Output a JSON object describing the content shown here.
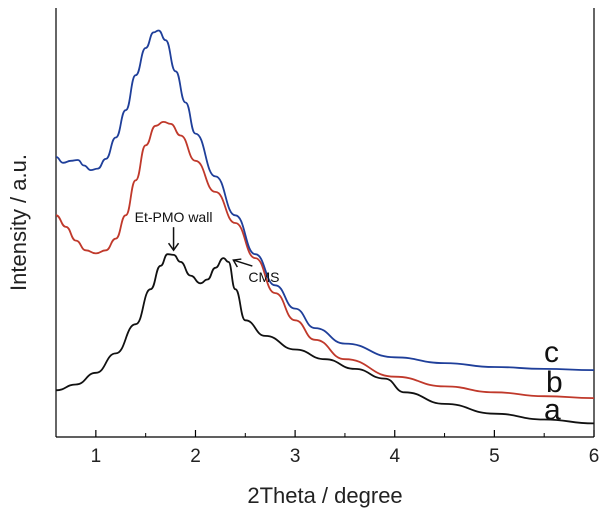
{
  "chart_data": {
    "type": "line",
    "title": "",
    "xlabel": "2Theta / degree",
    "ylabel": "Intensity / a.u.",
    "xlim": [
      0.6,
      6
    ],
    "ylim": [
      0,
      1
    ],
    "x_ticks": [
      1,
      2,
      3,
      4,
      5,
      6
    ],
    "y_ticks": [],
    "grid": false,
    "series": [
      {
        "label": "a",
        "color": "#111111",
        "points": [
          [
            0.6,
            0.12
          ],
          [
            0.8,
            0.135
          ],
          [
            1.0,
            0.165
          ],
          [
            1.2,
            0.215
          ],
          [
            1.4,
            0.29
          ],
          [
            1.55,
            0.38
          ],
          [
            1.65,
            0.44
          ],
          [
            1.72,
            0.47
          ],
          [
            1.78,
            0.468
          ],
          [
            1.85,
            0.45
          ],
          [
            1.95,
            0.415
          ],
          [
            2.05,
            0.395
          ],
          [
            2.12,
            0.405
          ],
          [
            2.2,
            0.435
          ],
          [
            2.28,
            0.46
          ],
          [
            2.33,
            0.45
          ],
          [
            2.4,
            0.38
          ],
          [
            2.5,
            0.3
          ],
          [
            2.7,
            0.26
          ],
          [
            3.0,
            0.225
          ],
          [
            3.3,
            0.2
          ],
          [
            3.6,
            0.175
          ],
          [
            3.9,
            0.15
          ],
          [
            4.1,
            0.115
          ],
          [
            4.5,
            0.085
          ],
          [
            5.0,
            0.06
          ],
          [
            5.5,
            0.045
          ],
          [
            6.0,
            0.035
          ]
        ]
      },
      {
        "label": "b",
        "color": "#c0392b",
        "points": [
          [
            0.6,
            0.57
          ],
          [
            0.7,
            0.54
          ],
          [
            0.8,
            0.505
          ],
          [
            0.9,
            0.48
          ],
          [
            1.0,
            0.472
          ],
          [
            1.1,
            0.48
          ],
          [
            1.2,
            0.51
          ],
          [
            1.3,
            0.57
          ],
          [
            1.4,
            0.66
          ],
          [
            1.5,
            0.75
          ],
          [
            1.6,
            0.8
          ],
          [
            1.68,
            0.81
          ],
          [
            1.75,
            0.805
          ],
          [
            1.85,
            0.775
          ],
          [
            2.0,
            0.71
          ],
          [
            2.2,
            0.63
          ],
          [
            2.4,
            0.55
          ],
          [
            2.6,
            0.46
          ],
          [
            2.8,
            0.37
          ],
          [
            3.0,
            0.3
          ],
          [
            3.2,
            0.25
          ],
          [
            3.5,
            0.2
          ],
          [
            4.0,
            0.155
          ],
          [
            4.5,
            0.13
          ],
          [
            5.0,
            0.115
          ],
          [
            5.5,
            0.105
          ],
          [
            6.0,
            0.1
          ]
        ]
      },
      {
        "label": "c",
        "color": "#1f3f9a",
        "points": [
          [
            0.6,
            0.72
          ],
          [
            0.67,
            0.705
          ],
          [
            0.75,
            0.71
          ],
          [
            0.82,
            0.712
          ],
          [
            0.88,
            0.698
          ],
          [
            0.95,
            0.686
          ],
          [
            1.02,
            0.69
          ],
          [
            1.1,
            0.715
          ],
          [
            1.2,
            0.77
          ],
          [
            1.3,
            0.84
          ],
          [
            1.4,
            0.93
          ],
          [
            1.5,
            1.0
          ],
          [
            1.58,
            1.04
          ],
          [
            1.63,
            1.045
          ],
          [
            1.7,
            1.02
          ],
          [
            1.8,
            0.94
          ],
          [
            1.9,
            0.86
          ],
          [
            2.0,
            0.78
          ],
          [
            2.2,
            0.67
          ],
          [
            2.4,
            0.57
          ],
          [
            2.6,
            0.47
          ],
          [
            2.8,
            0.39
          ],
          [
            3.0,
            0.33
          ],
          [
            3.2,
            0.28
          ],
          [
            3.5,
            0.24
          ],
          [
            4.0,
            0.205
          ],
          [
            4.5,
            0.19
          ],
          [
            5.0,
            0.18
          ],
          [
            5.5,
            0.175
          ],
          [
            6.0,
            0.172
          ]
        ]
      }
    ],
    "curve_labels": [
      "c",
      "b",
      "a"
    ],
    "annotations": [
      {
        "text": "Et-PMO wall",
        "x": 1.78,
        "y": 0.47
      },
      {
        "text": "CMS",
        "x": 2.33,
        "y": 0.46
      }
    ]
  }
}
